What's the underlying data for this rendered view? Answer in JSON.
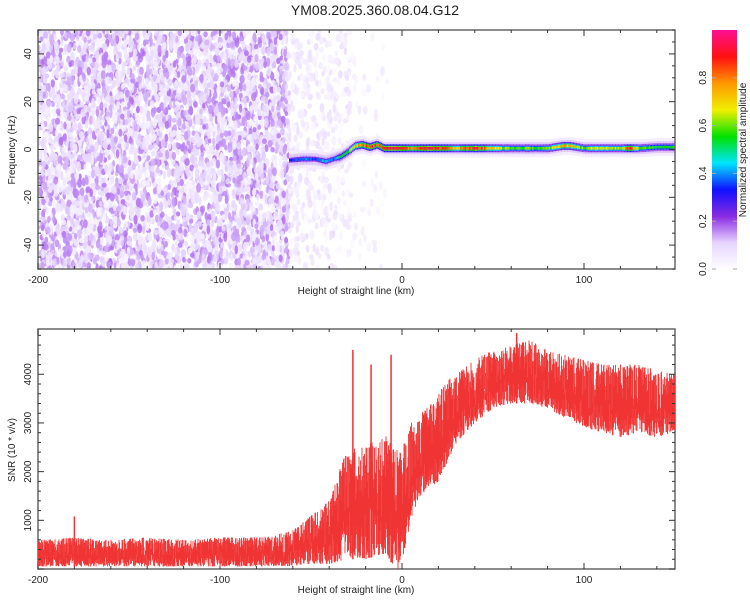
{
  "title": "YM08.2025.360.08.04.G12",
  "chart_data": [
    {
      "type": "heatmap",
      "xlabel": "Height of straight line (km)",
      "ylabel": "Frequency (Hz)",
      "xlim": [
        -200,
        150
      ],
      "ylim": [
        -50,
        50
      ],
      "xticks": [
        -200,
        -100,
        0,
        100
      ],
      "xtick_labels": [
        "-200",
        "-100",
        "0",
        "100"
      ],
      "yticks": [
        -40,
        -20,
        0,
        20,
        40
      ],
      "ytick_labels": [
        "-40",
        "-20",
        "0",
        "20",
        "40"
      ],
      "colorbar": {
        "label": "Normalized spectral amplitude",
        "range": [
          0,
          1
        ],
        "ticks": [
          0,
          0.2,
          0.4,
          0.6,
          0.8
        ],
        "tick_labels": [
          "0.0",
          "0.2",
          "0.4",
          "0.6",
          "0.8"
        ],
        "colors": [
          "#ffffff",
          "#e6d5ff",
          "#8a2be2",
          "#1010ff",
          "#00e5ff",
          "#00e000",
          "#f0f000",
          "#ff9900",
          "#ff1010",
          "#ff1090"
        ]
      },
      "noise_regions": [
        {
          "x": [
            -200,
            -62
          ],
          "amplitude": 0.12,
          "density": 0.75
        },
        {
          "x": [
            -62,
            -28
          ],
          "amplitude": 0.06,
          "density": 0.25
        },
        {
          "x": [
            -28,
            -8
          ],
          "amplitude": 0.04,
          "density": 0.06
        }
      ],
      "ridge": {
        "x": [
          -62,
          -55,
          -48,
          -42,
          -38,
          -34,
          -30,
          -26,
          -22,
          -18,
          -14,
          -10,
          -5,
          0,
          5,
          10,
          20,
          30,
          40,
          50,
          60,
          70,
          80,
          88,
          92,
          100,
          110,
          120,
          125,
          130,
          140,
          150
        ],
        "frequency": [
          -4.5,
          -4,
          -4,
          -5,
          -4,
          -3,
          -1,
          1.5,
          2,
          1,
          2,
          0.5,
          0.5,
          0.5,
          0.5,
          0.5,
          0.5,
          0.5,
          0.5,
          0.5,
          0.5,
          0.5,
          0.5,
          1.5,
          1.5,
          0.5,
          0.5,
          0.5,
          0.5,
          0.5,
          1,
          1
        ],
        "amplitude": [
          0.35,
          0.4,
          0.38,
          0.45,
          0.4,
          0.55,
          0.6,
          0.75,
          0.8,
          0.9,
          0.85,
          0.95,
          0.9,
          0.95,
          0.8,
          0.95,
          0.9,
          0.75,
          0.95,
          0.7,
          0.6,
          0.6,
          0.6,
          0.8,
          0.75,
          0.6,
          0.7,
          0.65,
          0.95,
          0.6,
          0.55,
          0.6
        ]
      }
    },
    {
      "type": "area",
      "xlabel": "Height of straight line (km)",
      "ylabel": "SNR (10 * v/v)",
      "xlim": [
        -200,
        150
      ],
      "ylim": [
        0,
        4930
      ],
      "xticks": [
        -200,
        -100,
        0,
        100
      ],
      "xtick_labels": [
        "-200",
        "-100",
        "0",
        "100"
      ],
      "yticks": [
        1000,
        2000,
        3000,
        4000
      ],
      "ytick_labels": [
        "1000",
        "2000",
        "3000",
        "4000"
      ],
      "series": [
        {
          "name": "SNR",
          "color": "#f03434",
          "x": [
            -200,
            -180,
            -160,
            -140,
            -120,
            -100,
            -80,
            -70,
            -60,
            -50,
            -40,
            -30,
            -20,
            -10,
            -5,
            -2,
            0,
            5,
            10,
            20,
            25,
            30,
            40,
            50,
            60,
            70,
            80,
            90,
            100,
            110,
            120,
            130,
            140,
            150
          ],
          "low": [
            50,
            50,
            50,
            50,
            50,
            50,
            50,
            60,
            60,
            100,
            100,
            200,
            200,
            300,
            100,
            0,
            100,
            1000,
            1500,
            1800,
            2200,
            2600,
            3000,
            3300,
            3400,
            3400,
            3300,
            3100,
            2900,
            2800,
            2700,
            2800,
            2700,
            2800
          ],
          "high": [
            600,
            650,
            600,
            650,
            600,
            650,
            650,
            700,
            800,
            1100,
            1400,
            2500,
            2500,
            2800,
            2500,
            2500,
            2500,
            3000,
            3200,
            3600,
            3900,
            4000,
            4300,
            4500,
            4600,
            4700,
            4500,
            4400,
            4300,
            4200,
            4200,
            4200,
            4100,
            4000
          ]
        }
      ],
      "spikes": [
        {
          "x": -180,
          "y": 1080
        },
        {
          "x": -27,
          "y": 4500
        },
        {
          "x": -17,
          "y": 4200
        },
        {
          "x": -6,
          "y": 4400
        },
        {
          "x": 63,
          "y": 4850
        }
      ]
    }
  ]
}
